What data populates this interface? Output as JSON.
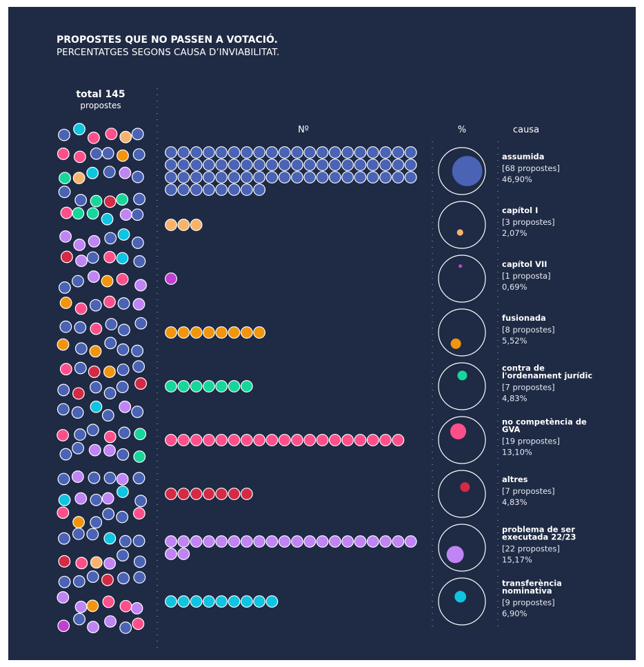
{
  "chart_data": {
    "type": "dotplot",
    "title": "PROPOSTES QUE NO PASSEN A VOTACIÓ.",
    "subtitle": "PERCENTATGES SEGONS CAUSA D’INVIABILITAT.",
    "total_label": "total",
    "total": 145,
    "total_unit": "propostes",
    "count_header": "Nº",
    "percent_header": "%",
    "cause_header": "causa",
    "categories": [
      "assumida",
      "capítol I",
      "capítol VII",
      "fusionada",
      "contra de l'ordenament jurídic",
      "no competència de GVA",
      "altres",
      "problema de ser executada 22/23",
      "transferència nominativa"
    ],
    "values": [
      68,
      3,
      1,
      8,
      7,
      19,
      7,
      22,
      9
    ],
    "value_labels": [
      "[68 propostes]",
      "[3 propostes]",
      "[1 proposta]",
      "[8 propostes]",
      "[7 propostes]",
      "[19 propostes]",
      "[7 propostes]",
      "[22 propostes]",
      "[9 propostes]"
    ],
    "percentages": [
      46.9,
      2.07,
      0.69,
      5.52,
      4.83,
      13.1,
      4.83,
      15.17,
      6.9
    ],
    "percentage_labels": [
      "46,90%",
      "2,07%",
      "0,69%",
      "5,52%",
      "4,83%",
      "13,10%",
      "4,83%",
      "15,17%",
      "6,90%"
    ],
    "colors": [
      "#4a63b5",
      "#f7b36b",
      "#c13fd1",
      "#f2950e",
      "#17d69b",
      "#ff4f8b",
      "#d42a45",
      "#c084f5",
      "#0fc4e0"
    ]
  }
}
